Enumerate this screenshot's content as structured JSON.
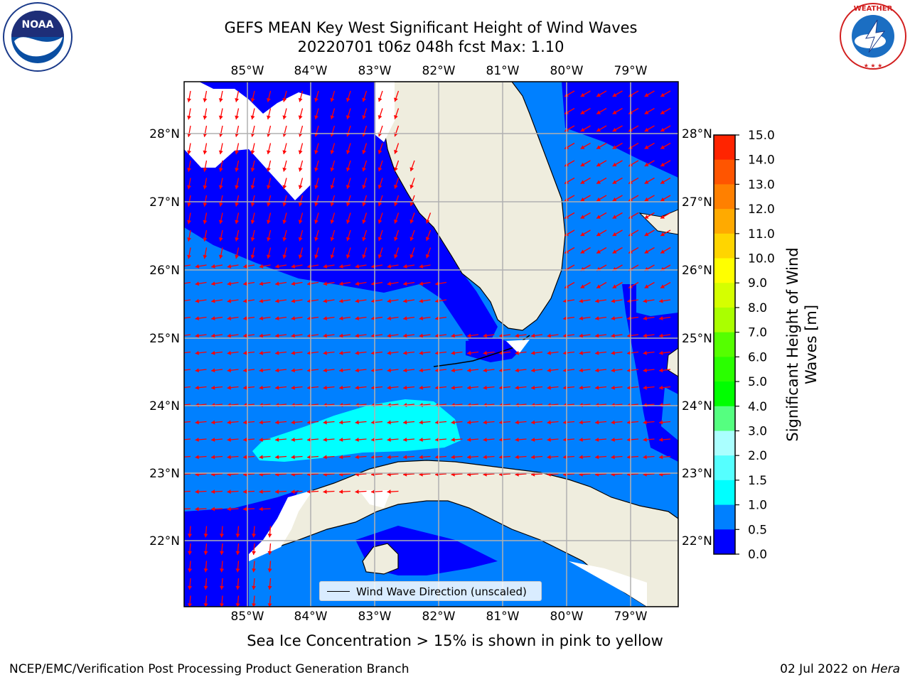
{
  "title": {
    "line1": "GEFS MEAN Key West Significant Height of Wind Waves",
    "line2": "20220701 t06z 048h fcst   Max: 1.10"
  },
  "logos": {
    "left": {
      "icon": "noaa-logo",
      "text": "NOAA"
    },
    "right": {
      "icon": "nws-logo",
      "text": "NATIONAL WEATHER SERVICE"
    }
  },
  "map": {
    "longitude_labels": [
      "85°W",
      "84°W",
      "83°W",
      "82°W",
      "81°W",
      "80°W",
      "79°W"
    ],
    "latitude_labels": [
      "28°N",
      "27°N",
      "26°N",
      "25°N",
      "24°N",
      "23°N",
      "22°N"
    ],
    "land_color": "#efedde",
    "arrow_color": "#ff0000",
    "legend_label": "Wind Wave Direction (unscaled)"
  },
  "colorbar": {
    "label": "Significant Height of Wind Waves [m]",
    "label_line1": "Significant Height of Wind",
    "label_line2": "Waves [m]",
    "ticks": [
      "15.0",
      "14.0",
      "13.0",
      "12.0",
      "11.0",
      "10.0",
      "9.0",
      "8.0",
      "7.0",
      "6.0",
      "5.0",
      "4.0",
      "3.0",
      "2.0",
      "1.5",
      "1.0",
      "0.5",
      "0.0"
    ],
    "colors": [
      "#ff0000",
      "#ff2400",
      "#ff5500",
      "#ff8000",
      "#ffaa00",
      "#ffd500",
      "#ffff00",
      "#d5ff00",
      "#aaff00",
      "#55ff00",
      "#2aff00",
      "#00ff00",
      "#55ff80",
      "#aaffff",
      "#55ffff",
      "#00ffff",
      "#0080ff",
      "#0000ff"
    ]
  },
  "note": "Sea Ice Concentration > 15% is shown in pink to yellow",
  "footer": {
    "left": "NCEP/EMC/Verification Post Processing Product Generation Branch",
    "date": "02 Jul 2022 on ",
    "host": "Hera"
  }
}
